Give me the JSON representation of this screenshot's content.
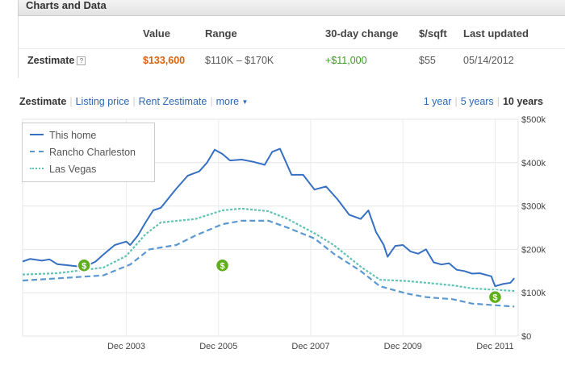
{
  "panel": {
    "title": "Charts and Data"
  },
  "table": {
    "headers": [
      "Value",
      "Range",
      "30-day change",
      "$/sqft",
      "Last updated"
    ],
    "row": {
      "label": "Zestimate",
      "help": "?",
      "value": "$133,600",
      "range": "$110K – $170K",
      "change": "+$11,000",
      "per_sqft": "$55",
      "last_updated": "05/14/2012"
    }
  },
  "tabs": {
    "active": "Zestimate",
    "items": [
      "Listing price",
      "Rent Zestimate",
      "more"
    ]
  },
  "ranges": {
    "items": [
      "1 year",
      "5 years"
    ],
    "active": "10 years"
  },
  "icons": {
    "help": "help-icon",
    "more": "chevron-down-icon",
    "marker": "dollar-sale-marker-icon"
  },
  "colors": {
    "this_home": "#3670c2",
    "rancho": "#5b97d0",
    "las_vegas": "#5fc3b5",
    "value": "#d8620b",
    "change": "#3a9a1f",
    "marker": "#5eae1e",
    "link": "#2b68b4"
  },
  "chart_data": {
    "type": "line",
    "x_range": [
      "Sep 2001",
      "Jun 2012"
    ],
    "x_ticks": [
      {
        "date": "Dec 2003",
        "label": "Dec 2003"
      },
      {
        "date": "Dec 2005",
        "label": "Dec 2005"
      },
      {
        "date": "Dec 2007",
        "label": "Dec 2007"
      },
      {
        "date": "Dec 2009",
        "label": "Dec 2009"
      },
      {
        "date": "Dec 2011",
        "label": "Dec 2011"
      }
    ],
    "y_ticks": [
      {
        "value": 0,
        "label": "$0"
      },
      {
        "value": 100000,
        "label": "$100k"
      },
      {
        "value": 200000,
        "label": "$200k"
      },
      {
        "value": 300000,
        "label": "$300k"
      },
      {
        "value": 400000,
        "label": "$400k"
      },
      {
        "value": 500000,
        "label": "$500k"
      }
    ],
    "ylim": [
      0,
      500000
    ],
    "grid": true,
    "legend_position": "top-left",
    "series": [
      {
        "name": "This home",
        "style": "solid",
        "points": [
          [
            "2001-09",
            172000
          ],
          [
            "2001-11",
            178000
          ],
          [
            "2002-02",
            174000
          ],
          [
            "2002-04",
            177000
          ],
          [
            "2002-06",
            166000
          ],
          [
            "2002-09",
            163000
          ],
          [
            "2002-12",
            160000
          ],
          [
            "2003-02",
            163000
          ],
          [
            "2003-04",
            172000
          ],
          [
            "2003-06",
            188000
          ],
          [
            "2003-09",
            210000
          ],
          [
            "2003-12",
            218000
          ],
          [
            "2004-01",
            210000
          ],
          [
            "2004-03",
            232000
          ],
          [
            "2004-05",
            262000
          ],
          [
            "2004-07",
            290000
          ],
          [
            "2004-09",
            296000
          ],
          [
            "2004-11",
            318000
          ],
          [
            "2005-01",
            340000
          ],
          [
            "2005-04",
            370000
          ],
          [
            "2005-07",
            380000
          ],
          [
            "2005-09",
            400000
          ],
          [
            "2005-11",
            430000
          ],
          [
            "2006-01",
            420000
          ],
          [
            "2006-03",
            405000
          ],
          [
            "2006-06",
            407000
          ],
          [
            "2006-09",
            402000
          ],
          [
            "2006-12",
            395000
          ],
          [
            "2007-02",
            425000
          ],
          [
            "2007-04",
            432000
          ],
          [
            "2007-05",
            412000
          ],
          [
            "2007-07",
            372000
          ],
          [
            "2007-10",
            372000
          ],
          [
            "2008-01",
            338000
          ],
          [
            "2008-04",
            345000
          ],
          [
            "2008-07",
            315000
          ],
          [
            "2008-10",
            280000
          ],
          [
            "2009-01",
            270000
          ],
          [
            "2009-03",
            290000
          ],
          [
            "2009-05",
            240000
          ],
          [
            "2009-07",
            210000
          ],
          [
            "2009-08",
            183000
          ],
          [
            "2009-10",
            208000
          ],
          [
            "2009-12",
            210000
          ],
          [
            "2010-02",
            195000
          ],
          [
            "2010-04",
            190000
          ],
          [
            "2010-06",
            200000
          ],
          [
            "2010-08",
            170000
          ],
          [
            "2010-10",
            165000
          ],
          [
            "2010-12",
            168000
          ],
          [
            "2011-02",
            153000
          ],
          [
            "2011-04",
            150000
          ],
          [
            "2011-06",
            144000
          ],
          [
            "2011-08",
            145000
          ],
          [
            "2011-11",
            138000
          ],
          [
            "2011-12",
            115000
          ],
          [
            "2012-02",
            120000
          ],
          [
            "2012-04",
            123000
          ],
          [
            "2012-05",
            133600
          ]
        ]
      },
      {
        "name": "Rancho Charleston",
        "style": "dashed",
        "points": [
          [
            "2001-09",
            128000
          ],
          [
            "2002-06",
            133000
          ],
          [
            "2003-06",
            140000
          ],
          [
            "2004-01",
            165000
          ],
          [
            "2004-06",
            200000
          ],
          [
            "2005-01",
            210000
          ],
          [
            "2005-06",
            232000
          ],
          [
            "2006-01",
            258000
          ],
          [
            "2006-06",
            266000
          ],
          [
            "2007-01",
            266000
          ],
          [
            "2007-06",
            250000
          ],
          [
            "2008-01",
            225000
          ],
          [
            "2008-06",
            190000
          ],
          [
            "2009-01",
            150000
          ],
          [
            "2009-06",
            115000
          ],
          [
            "2010-01",
            98000
          ],
          [
            "2010-06",
            90000
          ],
          [
            "2011-01",
            85000
          ],
          [
            "2011-06",
            75000
          ],
          [
            "2012-05",
            68000
          ]
        ]
      },
      {
        "name": "Las Vegas",
        "style": "dotted",
        "points": [
          [
            "2001-09",
            142000
          ],
          [
            "2002-06",
            145000
          ],
          [
            "2003-06",
            158000
          ],
          [
            "2003-12",
            185000
          ],
          [
            "2004-05",
            235000
          ],
          [
            "2004-09",
            262000
          ],
          [
            "2005-06",
            270000
          ],
          [
            "2006-01",
            290000
          ],
          [
            "2006-06",
            294000
          ],
          [
            "2007-01",
            288000
          ],
          [
            "2007-06",
            270000
          ],
          [
            "2008-01",
            237000
          ],
          [
            "2008-06",
            210000
          ],
          [
            "2009-01",
            160000
          ],
          [
            "2009-06",
            130000
          ],
          [
            "2010-01",
            127000
          ],
          [
            "2010-06",
            123000
          ],
          [
            "2011-01",
            117000
          ],
          [
            "2011-06",
            110000
          ],
          [
            "2012-05",
            104000
          ]
        ]
      }
    ],
    "markers": [
      {
        "date": "2003-01",
        "value": 163000,
        "label": "$"
      },
      {
        "date": "2006-01",
        "value": 163000,
        "label": "$"
      },
      {
        "date": "2011-12",
        "value": 90000,
        "label": "$"
      }
    ]
  }
}
